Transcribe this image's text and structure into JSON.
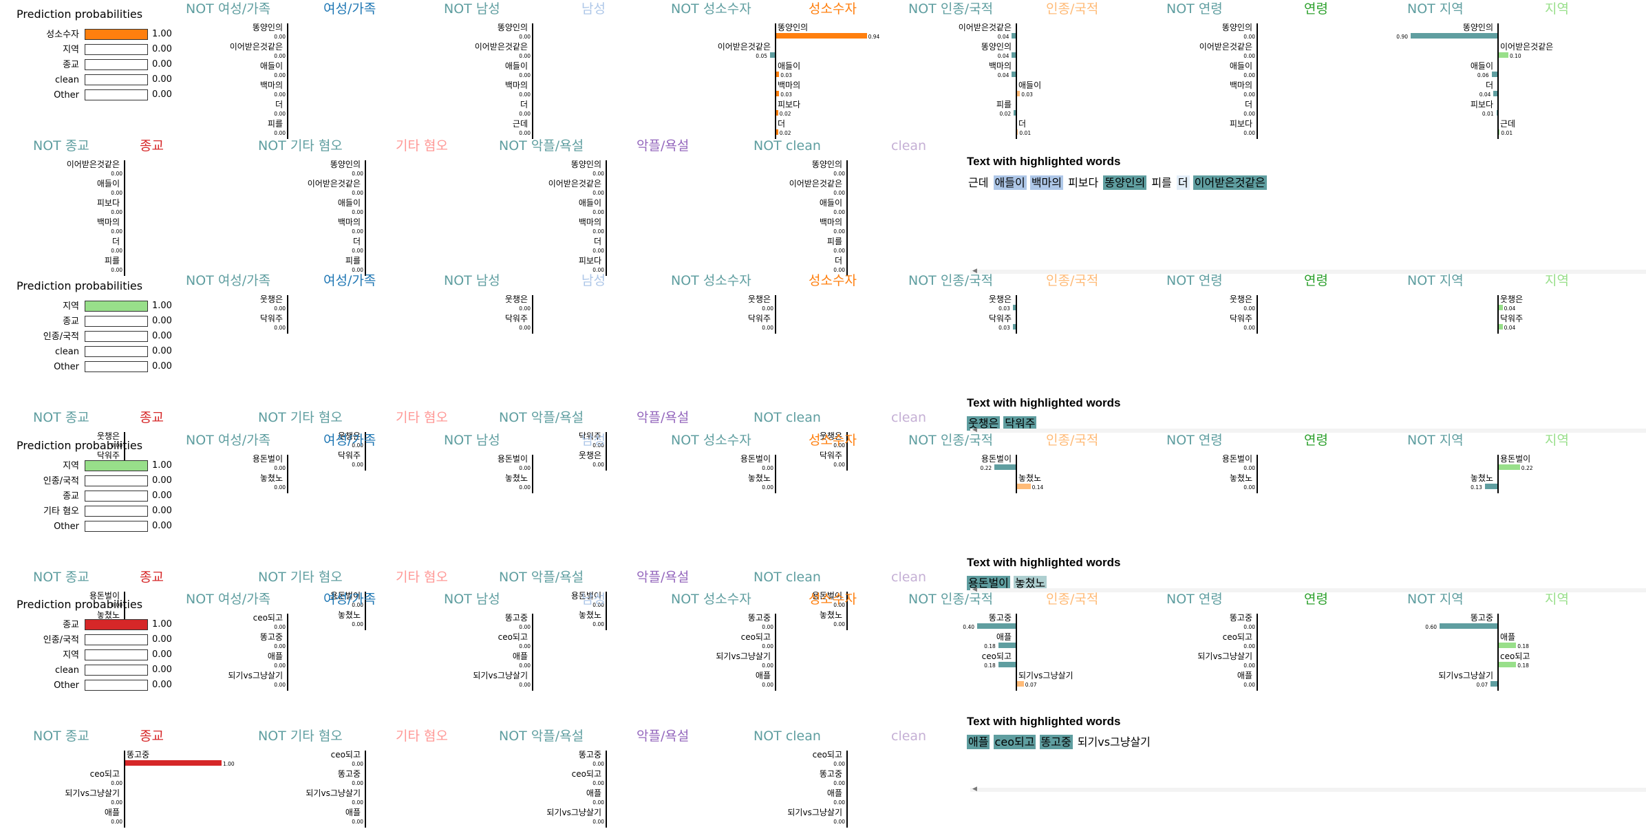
{
  "class_colors": {
    "여성/가족": "#1f77b4",
    "남성": "#aec7e8",
    "성소수자": "#ff7f0e",
    "인종/국적": "#ffbb78",
    "연령": "#2ca02c",
    "지역": "#98df8a",
    "종교": "#d62728",
    "기타 혐오": "#ff9896",
    "악플/욕설": "#9467bd",
    "clean": "#c5b0d5",
    "NOT": "#5f9ea0"
  },
  "ui": {
    "pp_title": "Prediction probabilities",
    "tw_title": "Text with highlighted words",
    "not_prefix": "NOT "
  },
  "panel_classes": {
    "row1": [
      "여성/가족",
      "남성",
      "성소수자",
      "인종/국적",
      "연령",
      "지역"
    ],
    "row2": [
      "종교",
      "기타 혐오",
      "악플/욕설",
      "clean"
    ]
  },
  "examples": [
    {
      "id": "ex1",
      "probabilities": [
        {
          "name": "성소수자",
          "value": 1.0,
          "text": "1.00"
        },
        {
          "name": "지역",
          "value": 0.0,
          "text": "0.00"
        },
        {
          "name": "종교",
          "value": 0.0,
          "text": "0.00"
        },
        {
          "name": "clean",
          "value": 0.0,
          "text": "0.00"
        },
        {
          "name": "Other",
          "value": 0.0,
          "text": "0.00"
        }
      ],
      "panels": [
        {
          "cls": "여성/가족",
          "items": [
            [
              "똥양인의",
              "0.00",
              0
            ],
            [
              "이어받은것같은",
              "0.00",
              0
            ],
            [
              "애들이",
              "0.00",
              0
            ],
            [
              "백마의",
              "0.00",
              0
            ],
            [
              "더",
              "0.00",
              0
            ],
            [
              "피를",
              "0.00",
              0
            ]
          ]
        },
        {
          "cls": "남성",
          "items": [
            [
              "똥양인의",
              "0.00",
              0
            ],
            [
              "이어받은것같은",
              "0.00",
              0
            ],
            [
              "애들이",
              "0.00",
              0
            ],
            [
              "백마의",
              "0.00",
              0
            ],
            [
              "더",
              "0.00",
              0
            ],
            [
              "근데",
              "0.00",
              0
            ]
          ]
        },
        {
          "cls": "성소수자",
          "items": [
            [
              "똥양인의",
              "0.94",
              0.94
            ],
            [
              "이어받은것같은",
              "0.05",
              -0.05
            ],
            [
              "애들이",
              "0.03",
              0.03
            ],
            [
              "백마의",
              "0.03",
              0.03
            ],
            [
              "피보다",
              "0.02",
              0.02
            ],
            [
              "더",
              "0.02",
              0.02
            ]
          ]
        },
        {
          "cls": "인종/국적",
          "items": [
            [
              "이어받은것같은",
              "0.04",
              -0.04
            ],
            [
              "똥양인의",
              "0.04",
              -0.04
            ],
            [
              "백마의",
              "0.04",
              -0.04
            ],
            [
              "애들이",
              "0.03",
              0.03
            ],
            [
              "피를",
              "0.02",
              -0.02
            ],
            [
              "더",
              "0.01",
              0.01
            ]
          ]
        },
        {
          "cls": "연령",
          "items": [
            [
              "똥양인의",
              "0.00",
              0
            ],
            [
              "이어받은것같은",
              "0.00",
              0
            ],
            [
              "애들이",
              "0.00",
              0
            ],
            [
              "백마의",
              "0.00",
              0
            ],
            [
              "더",
              "0.00",
              0
            ],
            [
              "피보다",
              "0.00",
              0
            ]
          ]
        },
        {
          "cls": "지역",
          "items": [
            [
              "똥양인의",
              "0.90",
              -0.9
            ],
            [
              "이어받은것같은",
              "0.10",
              0.1
            ],
            [
              "애들이",
              "0.06",
              -0.06
            ],
            [
              "더",
              "0.04",
              -0.04
            ],
            [
              "피보다",
              "0.01",
              -0.01
            ],
            [
              "근데",
              "0.01",
              0.01
            ]
          ]
        },
        {
          "cls": "종교",
          "items": [
            [
              "이어받은것같은",
              "0.00",
              0
            ],
            [
              "애들이",
              "0.00",
              0
            ],
            [
              "피보다",
              "0.00",
              0
            ],
            [
              "백마의",
              "0.00",
              0
            ],
            [
              "더",
              "0.00",
              0
            ],
            [
              "피를",
              "0.00",
              0
            ]
          ]
        },
        {
          "cls": "기타 혐오",
          "items": [
            [
              "똥양인의",
              "0.00",
              0
            ],
            [
              "이어받은것같은",
              "0.00",
              0
            ],
            [
              "애들이",
              "0.00",
              0
            ],
            [
              "백마의",
              "0.00",
              0
            ],
            [
              "더",
              "0.00",
              0
            ],
            [
              "피를",
              "0.00",
              0
            ]
          ]
        },
        {
          "cls": "악플/욕설",
          "items": [
            [
              "똥양인의",
              "0.00",
              0
            ],
            [
              "이어받은것같은",
              "0.00",
              0
            ],
            [
              "애들이",
              "0.00",
              0
            ],
            [
              "백마의",
              "0.00",
              0
            ],
            [
              "더",
              "0.00",
              0
            ],
            [
              "피보다",
              "0.00",
              0
            ]
          ]
        },
        {
          "cls": "clean",
          "items": [
            [
              "똥양인의",
              "0.00",
              0
            ],
            [
              "이어받은것같은",
              "0.00",
              0
            ],
            [
              "애들이",
              "0.00",
              0
            ],
            [
              "백마의",
              "0.00",
              0
            ],
            [
              "피를",
              "0.00",
              0
            ],
            [
              "더",
              "0.00",
              0
            ]
          ]
        }
      ],
      "text": [
        [
          "근데",
          ""
        ],
        [
          "애들이",
          "#aec7e8"
        ],
        [
          "백마의",
          "#aec7e8"
        ],
        [
          "피보다",
          ""
        ],
        [
          "똥양인의",
          "#5f9ea0"
        ],
        [
          "피를",
          ""
        ],
        [
          "더",
          "#e3eef8"
        ],
        [
          "이어받은것같은",
          "#5f9ea0"
        ]
      ]
    },
    {
      "id": "ex2",
      "probabilities": [
        {
          "name": "지역",
          "value": 1.0,
          "text": "1.00"
        },
        {
          "name": "종교",
          "value": 0.0,
          "text": "0.00"
        },
        {
          "name": "인종/국적",
          "value": 0.0,
          "text": "0.00"
        },
        {
          "name": "clean",
          "value": 0.0,
          "text": "0.00"
        },
        {
          "name": "Other",
          "value": 0.0,
          "text": "0.00"
        }
      ],
      "panels": [
        {
          "cls": "여성/가족",
          "items": [
            [
              "웃챙은",
              "0.00",
              0
            ],
            [
              "닥워주",
              "0.00",
              0
            ]
          ]
        },
        {
          "cls": "남성",
          "items": [
            [
              "웃챙은",
              "0.00",
              0
            ],
            [
              "닥워주",
              "0.00",
              0
            ]
          ]
        },
        {
          "cls": "성소수자",
          "items": [
            [
              "웃챙은",
              "0.00",
              0
            ],
            [
              "닥워주",
              "0.00",
              0
            ]
          ]
        },
        {
          "cls": "인종/국적",
          "items": [
            [
              "웃챙은",
              "0.03",
              -0.03
            ],
            [
              "닥워주",
              "0.03",
              -0.03
            ]
          ]
        },
        {
          "cls": "연령",
          "items": [
            [
              "웃챙은",
              "0.00",
              0
            ],
            [
              "닥워주",
              "0.00",
              0
            ]
          ]
        },
        {
          "cls": "지역",
          "items": [
            [
              "웃챙은",
              "0.04",
              0.04
            ],
            [
              "닥워주",
              "0.04",
              0.04
            ]
          ]
        },
        {
          "cls": "종교",
          "items": [
            [
              "웃챙은",
              "0.00",
              0
            ],
            [
              "닥워주",
              "0.00",
              0
            ]
          ]
        },
        {
          "cls": "기타 혐오",
          "items": [
            [
              "웃챙은",
              "0.00",
              0
            ],
            [
              "닥워주",
              "0.00",
              0
            ]
          ]
        },
        {
          "cls": "악플/욕설",
          "items": [
            [
              "닥워주",
              "0.00",
              0
            ],
            [
              "웃챙은",
              "0.00",
              0
            ]
          ]
        },
        {
          "cls": "clean",
          "items": [
            [
              "웃챙은",
              "0.00",
              0
            ],
            [
              "닥워주",
              "0.00",
              0
            ]
          ]
        }
      ],
      "text": [
        [
          "웃챙은",
          "#5f9ea0"
        ],
        [
          "닥워주",
          "#5f9ea0"
        ]
      ]
    },
    {
      "id": "ex3",
      "probabilities": [
        {
          "name": "지역",
          "value": 1.0,
          "text": "1.00"
        },
        {
          "name": "인종/국적",
          "value": 0.0,
          "text": "0.00"
        },
        {
          "name": "종교",
          "value": 0.0,
          "text": "0.00"
        },
        {
          "name": "기타 혐오",
          "value": 0.0,
          "text": "0.00"
        },
        {
          "name": "Other",
          "value": 0.0,
          "text": "0.00"
        }
      ],
      "panels": [
        {
          "cls": "여성/가족",
          "items": [
            [
              "용돈벌이",
              "0.00",
              0
            ],
            [
              "놓쳤노",
              "0.00",
              0
            ]
          ]
        },
        {
          "cls": "남성",
          "items": [
            [
              "용돈벌이",
              "0.00",
              0
            ],
            [
              "놓쳤노",
              "0.00",
              0
            ]
          ]
        },
        {
          "cls": "성소수자",
          "items": [
            [
              "용돈벌이",
              "0.00",
              0
            ],
            [
              "놓쳤노",
              "0.00",
              0
            ]
          ]
        },
        {
          "cls": "인종/국적",
          "items": [
            [
              "용돈벌이",
              "0.22",
              -0.22
            ],
            [
              "놓쳤노",
              "0.14",
              0.14
            ]
          ]
        },
        {
          "cls": "연령",
          "items": [
            [
              "용돈벌이",
              "0.00",
              0
            ],
            [
              "놓쳤노",
              "0.00",
              0
            ]
          ]
        },
        {
          "cls": "지역",
          "items": [
            [
              "용돈벌이",
              "0.22",
              0.22
            ],
            [
              "놓쳤노",
              "0.13",
              -0.13
            ]
          ]
        },
        {
          "cls": "종교",
          "items": [
            [
              "용돈벌이",
              "0.00",
              0
            ],
            [
              "놓쳤노",
              "0.00",
              0
            ]
          ]
        },
        {
          "cls": "기타 혐오",
          "items": [
            [
              "용돈벌이",
              "0.00",
              0
            ],
            [
              "놓쳤노",
              "0.00",
              0
            ]
          ]
        },
        {
          "cls": "악플/욕설",
          "items": [
            [
              "용돈벌이",
              "0.00",
              0
            ],
            [
              "놓쳤노",
              "0.00",
              0
            ]
          ]
        },
        {
          "cls": "clean",
          "items": [
            [
              "용돈벌이",
              "0.00",
              0
            ],
            [
              "놓쳤노",
              "0.00",
              0
            ]
          ]
        }
      ],
      "text": [
        [
          "용돈벌이",
          "#5f9ea0"
        ],
        [
          "놓쳤노",
          "#aecfd0"
        ]
      ]
    },
    {
      "id": "ex4",
      "probabilities": [
        {
          "name": "종교",
          "value": 1.0,
          "text": "1.00"
        },
        {
          "name": "인종/국적",
          "value": 0.0,
          "text": "0.00"
        },
        {
          "name": "지역",
          "value": 0.0,
          "text": "0.00"
        },
        {
          "name": "clean",
          "value": 0.0,
          "text": "0.00"
        },
        {
          "name": "Other",
          "value": 0.0,
          "text": "0.00"
        }
      ],
      "panels": [
        {
          "cls": "여성/가족",
          "items": [
            [
              "ceo되고",
              "0.00",
              0
            ],
            [
              "똥고중",
              "0.00",
              0
            ],
            [
              "애플",
              "0.00",
              0
            ],
            [
              "되기vs그냥살기",
              "0.00",
              0
            ]
          ]
        },
        {
          "cls": "남성",
          "items": [
            [
              "똥고중",
              "0.00",
              0
            ],
            [
              "ceo되고",
              "0.00",
              0
            ],
            [
              "애플",
              "0.00",
              0
            ],
            [
              "되기vs그냥살기",
              "0.00",
              0
            ]
          ]
        },
        {
          "cls": "성소수자",
          "items": [
            [
              "똥고중",
              "0.00",
              0
            ],
            [
              "ceo되고",
              "0.00",
              0
            ],
            [
              "되기vs그냥살기",
              "0.00",
              0
            ],
            [
              "애플",
              "0.00",
              0
            ]
          ]
        },
        {
          "cls": "인종/국적",
          "items": [
            [
              "똥고중",
              "0.40",
              -0.4
            ],
            [
              "애플",
              "0.18",
              -0.18
            ],
            [
              "ceo되고",
              "0.18",
              -0.18
            ],
            [
              "되기vs그냥살기",
              "0.07",
              0.07
            ]
          ]
        },
        {
          "cls": "연령",
          "items": [
            [
              "똥고중",
              "0.00",
              0
            ],
            [
              "ceo되고",
              "0.00",
              0
            ],
            [
              "되기vs그냥살기",
              "0.00",
              0
            ],
            [
              "애플",
              "0.00",
              0
            ]
          ]
        },
        {
          "cls": "지역",
          "items": [
            [
              "똥고중",
              "0.60",
              -0.6
            ],
            [
              "애플",
              "0.18",
              0.18
            ],
            [
              "ceo되고",
              "0.18",
              0.18
            ],
            [
              "되기vs그냥살기",
              "0.07",
              -0.07
            ]
          ]
        },
        {
          "cls": "종교",
          "items": [
            [
              "똥고중",
              "1.00",
              1.0
            ],
            [
              "ceo되고",
              "0.00",
              0
            ],
            [
              "되기vs그냥살기",
              "0.00",
              0
            ],
            [
              "애플",
              "0.00",
              0
            ]
          ]
        },
        {
          "cls": "기타 혐오",
          "items": [
            [
              "ceo되고",
              "0.00",
              0
            ],
            [
              "똥고중",
              "0.00",
              0
            ],
            [
              "되기vs그냥살기",
              "0.00",
              0
            ],
            [
              "애플",
              "0.00",
              0
            ]
          ]
        },
        {
          "cls": "악플/욕설",
          "items": [
            [
              "똥고중",
              "0.00",
              0
            ],
            [
              "ceo되고",
              "0.00",
              0
            ],
            [
              "애플",
              "0.00",
              0
            ],
            [
              "되기vs그냥살기",
              "0.00",
              0
            ]
          ]
        },
        {
          "cls": "clean",
          "items": [
            [
              "ceo되고",
              "0.00",
              0
            ],
            [
              "똥고중",
              "0.00",
              0
            ],
            [
              "애플",
              "0.00",
              0
            ],
            [
              "되기vs그냥살기",
              "0.00",
              0
            ]
          ]
        }
      ],
      "text": [
        [
          "애플",
          "#5f9ea0"
        ],
        [
          "ceo되고",
          "#5f9ea0"
        ],
        [
          "똥고중",
          "#5f9ea0"
        ],
        [
          "되기vs그냥살기",
          ""
        ]
      ]
    }
  ]
}
